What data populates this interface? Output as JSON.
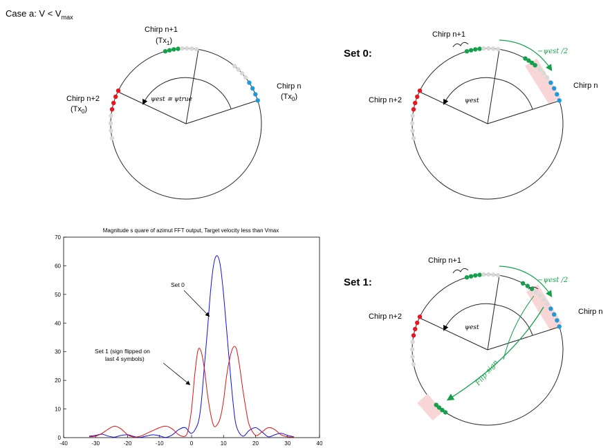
{
  "case_label": "Case a: V < V",
  "case_label_sub": "max",
  "panel_a": {
    "chirp_n1": "Chirp n+1",
    "chirp_n1_tx": "(Tx",
    "chirp_n1_tx_sub": "1",
    "chirp_n2": "Chirp n+2",
    "chirp_n2_tx": "(Tx",
    "chirp_n2_tx_sub": "0",
    "chirp_n": "Chirp n",
    "chirp_n_tx": "(Tx",
    "chirp_n_tx_sub": "0",
    "psi_label": "ψest ≅ ψtrue",
    "close_paren": ")"
  },
  "set0": {
    "title": "Set 0:",
    "chirp_n1": "Chirp n+1",
    "chirp_n2": "Chirp n+2",
    "chirp_n": "Chirp n",
    "psi_label": "ψest",
    "arc_label": "−ψest /2"
  },
  "set1": {
    "title": "Set 1:",
    "chirp_n1": "Chirp n+1",
    "chirp_n2": "Chirp n+2",
    "chirp_n": "Chirp n",
    "psi_label": "ψest",
    "arc_label": "−ψest /2",
    "flip_label": "Flip sign"
  },
  "colors": {
    "red": "#e8161e",
    "green": "#12a04a",
    "blue": "#1e9ad8",
    "gray": "#d8d8d8",
    "pink": "#f8d6d6",
    "blue_line": "#1010e0",
    "red_line": "#e01010"
  },
  "chart_data": {
    "type": "line",
    "title": "Magnitude s quare of azimut FFT output, Target velocity less than Vmax",
    "xlim": [
      -40,
      40
    ],
    "ylim": [
      0,
      70
    ],
    "xticks": [
      -40,
      -30,
      -20,
      -10,
      0,
      10,
      20,
      30,
      40
    ],
    "yticks": [
      0,
      10,
      20,
      30,
      40,
      50,
      60,
      70
    ],
    "grid": false,
    "series": [
      {
        "name": "Set 0",
        "color": "#1010e0",
        "x": [
          -32,
          -30,
          -28,
          -26,
          -24,
          -22,
          -20,
          -18,
          -16,
          -14,
          -12,
          -10,
          -8,
          -6,
          -4,
          -2,
          0,
          2,
          3,
          4,
          5,
          6,
          7,
          8,
          9,
          10,
          11,
          12,
          13,
          14,
          16,
          18,
          20,
          22,
          24,
          26,
          28,
          30,
          32
        ],
        "y": [
          0.5,
          0.8,
          1.2,
          0.5,
          0.2,
          0.8,
          1.0,
          0.4,
          0.1,
          0.6,
          1.0,
          0.6,
          0.1,
          1.0,
          2.8,
          3.5,
          1.5,
          5,
          12,
          25,
          38,
          52,
          61,
          63.5,
          60,
          50,
          37,
          24,
          12,
          4,
          0.5,
          2.5,
          3.5,
          2.0,
          0.3,
          1.0,
          1.5,
          0.8,
          0.3
        ]
      },
      {
        "name": "Set 1 (sign flipped on last 4 symbols)",
        "color": "#e01010",
        "x": [
          -32,
          -30,
          -28,
          -26,
          -24,
          -22,
          -20,
          -18,
          -16,
          -14,
          -12,
          -10,
          -8,
          -6,
          -4,
          -2,
          -1,
          0,
          1,
          2,
          3,
          4,
          5,
          6,
          7,
          8,
          9,
          10,
          11,
          12,
          13,
          14,
          15,
          16,
          17,
          18,
          20,
          22,
          24,
          26,
          28,
          30,
          32
        ],
        "y": [
          0.3,
          0.5,
          1.5,
          3.0,
          4.0,
          3.0,
          1.0,
          0.2,
          0.5,
          1.5,
          2.5,
          3.5,
          4.0,
          3.0,
          1.0,
          0.5,
          3,
          10,
          22,
          30.5,
          30,
          24,
          15,
          8,
          4,
          4.5,
          7,
          13,
          22,
          28,
          31.5,
          31,
          25,
          17,
          10,
          4.5,
          0.8,
          2.0,
          3.5,
          2.8,
          1.0,
          0.3,
          0.2
        ]
      }
    ],
    "annotations": [
      "Set 0",
      "Set 1 (sign flipped on",
      "last 4 symbols)"
    ]
  }
}
